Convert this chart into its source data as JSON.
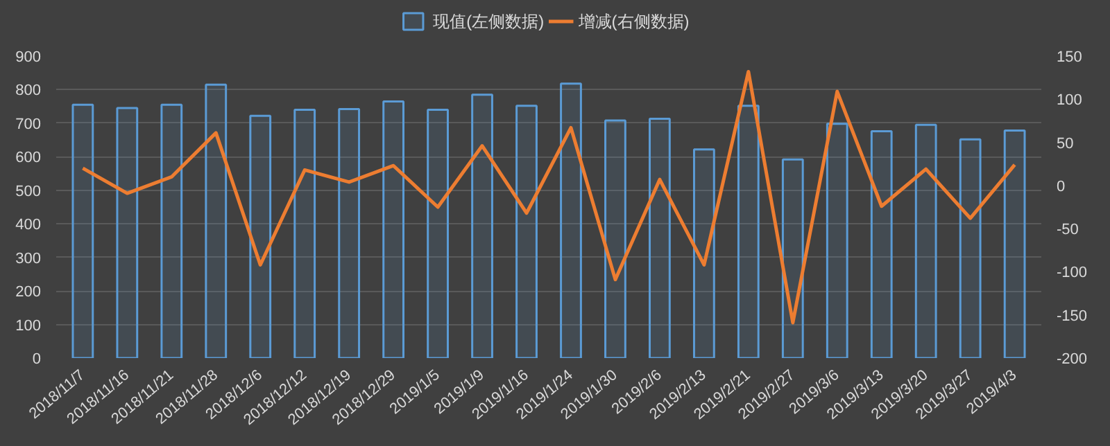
{
  "chart_data": {
    "type": "bar",
    "categories": [
      "2018/11/7",
      "2018/11/16",
      "2018/11/21",
      "2018/11/28",
      "2018/12/6",
      "2018/12/12",
      "2018/12/19",
      "2018/12/29",
      "2019/1/5",
      "2019/1/9",
      "2019/1/16",
      "2019/1/24",
      "2019/1/30",
      "2019/2/6",
      "2019/2/13",
      "2019/2/21",
      "2019/2/27",
      "2019/3/6",
      "2019/3/13",
      "2019/3/20",
      "2019/3/27",
      "2019/4/3"
    ],
    "series": [
      {
        "name": "现值(左侧数据)",
        "color": "#5b9bd5",
        "values": [
          755,
          745,
          755,
          815,
          722,
          740,
          742,
          765,
          740,
          785,
          752,
          818,
          708,
          713,
          622,
          752,
          592,
          698,
          676,
          695,
          652,
          678
        ]
      },
      {
        "name": "增减(右侧数据)",
        "type": "line",
        "axis": "y2",
        "color": "#ed7d31",
        "values": [
          20,
          -9,
          10,
          61,
          -92,
          18,
          4,
          23,
          -25,
          46,
          -32,
          67,
          -109,
          7,
          -92,
          132,
          -159,
          109,
          -24,
          19,
          -38,
          24
        ]
      }
    ],
    "ylim": [
      0,
      900
    ],
    "yticks": [
      0,
      100,
      200,
      300,
      400,
      500,
      600,
      700,
      800,
      900
    ],
    "y2lim": [
      -200,
      150
    ],
    "y2ticks": [
      -200,
      -150,
      -100,
      -50,
      0,
      50,
      100,
      150
    ],
    "grid": "y",
    "legend": "top",
    "marker": "none",
    "line_style": "solid"
  }
}
